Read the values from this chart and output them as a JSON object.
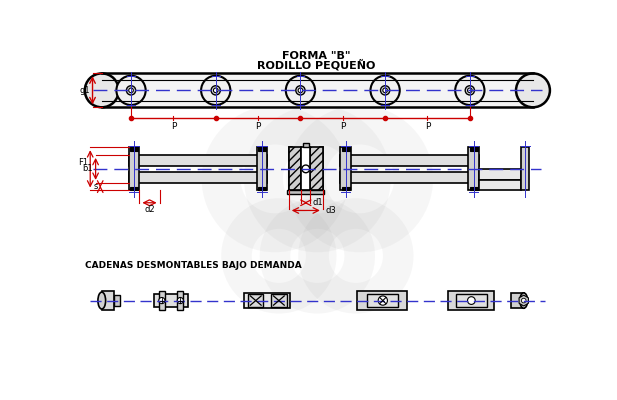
{
  "title_line1": "FORMA \"B\"",
  "title_line2": "RODILLO PEQUEÑO",
  "bottom_label": "CADENAS DESMONTABLES BAJO DEMANDA",
  "bg_color": "#ffffff",
  "line_color": "#000000",
  "blue_color": "#3333cc",
  "red_color": "#cc0000",
  "title_fontsize": 8,
  "label_fontsize": 6.5
}
